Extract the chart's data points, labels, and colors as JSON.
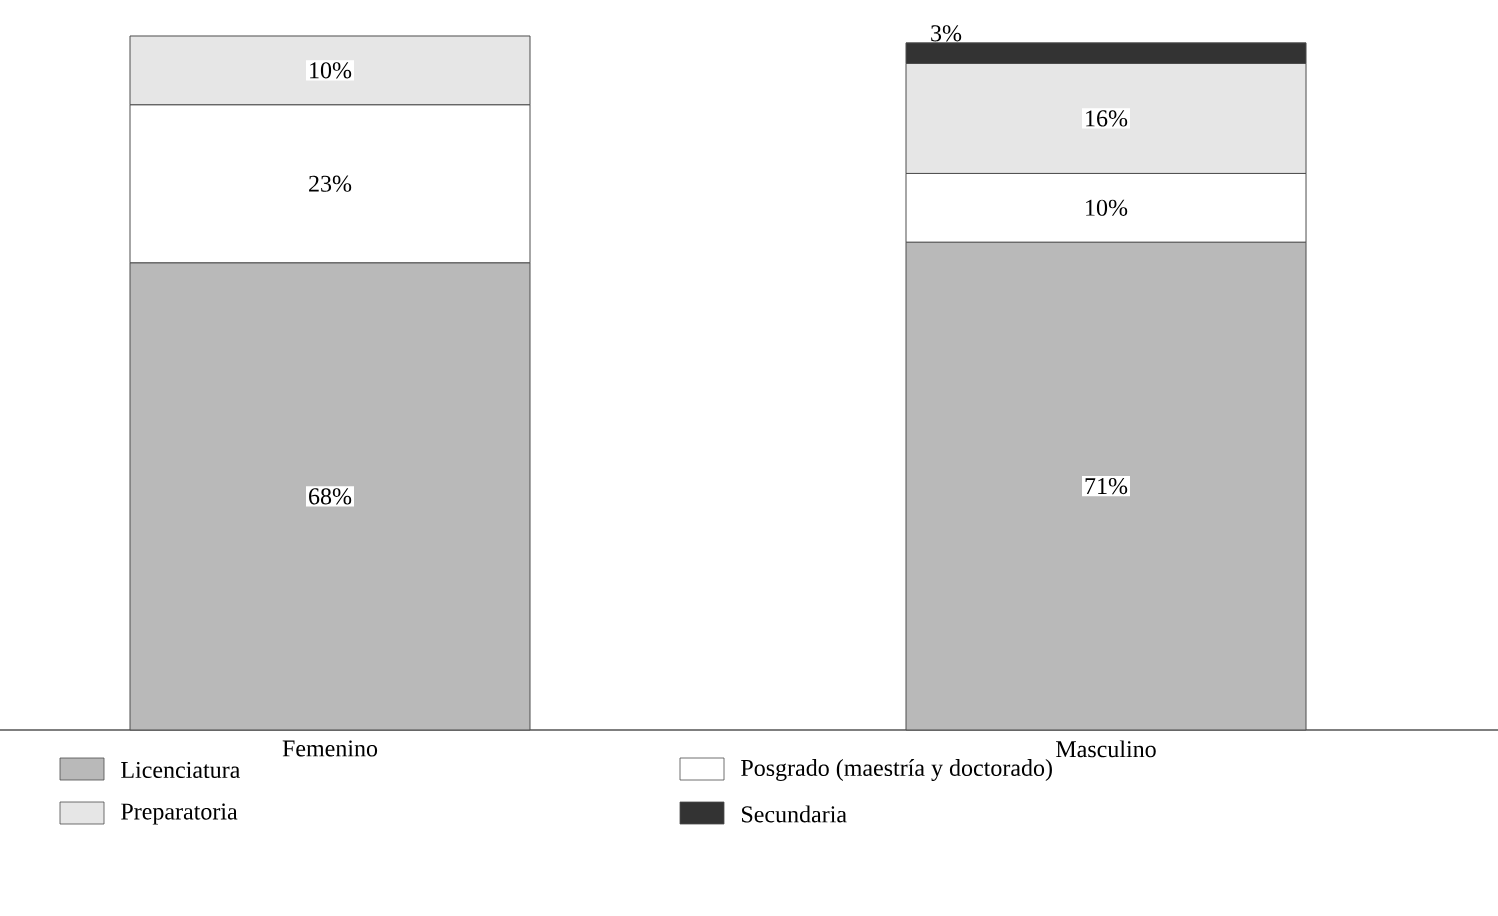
{
  "chart_data": {
    "type": "bar",
    "stacked": true,
    "categories": [
      "Femenino",
      "Masculino"
    ],
    "legend": "bottom",
    "series": [
      {
        "name": "Licenciatura",
        "color": "#b9b9b9",
        "values": [
          68,
          71
        ],
        "value_labels": [
          "68%",
          "71%"
        ]
      },
      {
        "name": "Posgrado (maestría y doctorado)",
        "color": "#ffffff",
        "values": [
          23,
          10
        ],
        "value_labels": [
          "23%",
          "10%"
        ]
      },
      {
        "name": "Preparatoria",
        "color": "#e6e6e6",
        "values": [
          10,
          16
        ],
        "value_labels": [
          "10%",
          "16%"
        ]
      },
      {
        "name": "Secundaria",
        "color": "#333333",
        "values": [
          null,
          3
        ],
        "value_labels": [
          null,
          "3%"
        ]
      }
    ]
  }
}
